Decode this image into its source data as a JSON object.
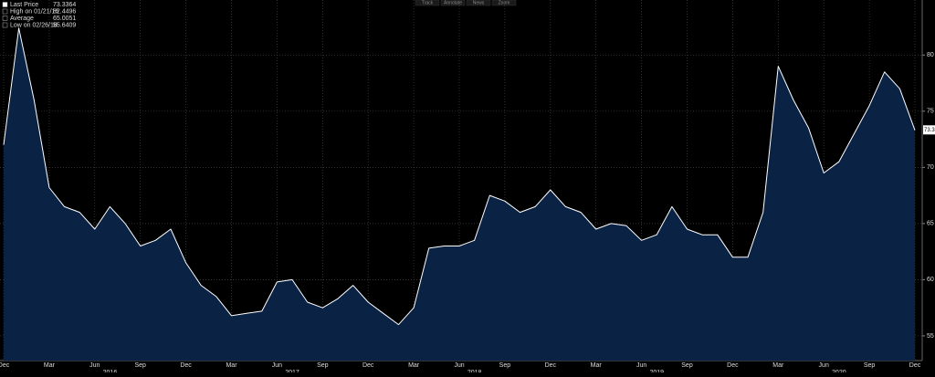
{
  "chart_data": {
    "type": "area",
    "toolbar": [
      "Track",
      "Annotate",
      "News",
      "Zoom"
    ],
    "legend": [
      {
        "label": "Last Price",
        "value": 73.3364
      },
      {
        "label": "High on 01/21/16",
        "value": 82.4496
      },
      {
        "label": "Average",
        "value": 65.0051
      },
      {
        "label": "Low on 02/26/18",
        "value": 55.6409
      }
    ],
    "x": [
      "2015-12",
      "2016-01",
      "2016-02",
      "2016-03",
      "2016-04",
      "2016-05",
      "2016-06",
      "2016-07",
      "2016-08",
      "2016-09",
      "2016-10",
      "2016-11",
      "2016-12",
      "2017-01",
      "2017-02",
      "2017-03",
      "2017-04",
      "2017-05",
      "2017-06",
      "2017-07",
      "2017-08",
      "2017-09",
      "2017-10",
      "2017-11",
      "2017-12",
      "2018-01",
      "2018-02",
      "2018-03",
      "2018-04",
      "2018-05",
      "2018-06",
      "2018-07",
      "2018-08",
      "2018-09",
      "2018-10",
      "2018-11",
      "2018-12",
      "2019-01",
      "2019-02",
      "2019-03",
      "2019-04",
      "2019-05",
      "2019-06",
      "2019-07",
      "2019-08",
      "2019-09",
      "2019-10",
      "2019-11",
      "2019-12",
      "2020-01",
      "2020-02",
      "2020-03",
      "2020-04",
      "2020-05",
      "2020-06",
      "2020-07",
      "2020-08",
      "2020-09",
      "2020-10",
      "2020-11",
      "2020-12"
    ],
    "series": [
      {
        "name": "Last Price",
        "color": "#ffffff",
        "fill": "#0a2345",
        "values": [
          72,
          82.4,
          76,
          68.2,
          66.5,
          66,
          64.5,
          66.5,
          65,
          63,
          63.5,
          64.5,
          61.5,
          59.5,
          58.5,
          56.8,
          57,
          57.2,
          59.8,
          60,
          58,
          57.5,
          58.3,
          59.5,
          58,
          57,
          56,
          57.5,
          62.8,
          63,
          63,
          63.5,
          67.5,
          67,
          66,
          66.5,
          68,
          66.5,
          66,
          64.5,
          65,
          64.8,
          63.5,
          64,
          66.5,
          64.5,
          64,
          64,
          62,
          62,
          66,
          79,
          76,
          73.5,
          69.5,
          70.5,
          73,
          75.5,
          78.5,
          77,
          73.3
        ]
      }
    ],
    "xlim": [
      "2015-12",
      "2020-12"
    ],
    "xticks": [
      {
        "value": "2015-12",
        "label": "Dec"
      },
      {
        "value": "2016-03",
        "label": "Mar"
      },
      {
        "value": "2016-06",
        "label": "Jun"
      },
      {
        "value": "2016-09",
        "label": "Sep"
      },
      {
        "value": "2016-12",
        "label": "Dec"
      },
      {
        "value": "2017-03",
        "label": "Mar"
      },
      {
        "value": "2017-06",
        "label": "Jun"
      },
      {
        "value": "2017-09",
        "label": "Sep"
      },
      {
        "value": "2017-12",
        "label": "Dec"
      },
      {
        "value": "2018-03",
        "label": "Mar"
      },
      {
        "value": "2018-06",
        "label": "Jun"
      },
      {
        "value": "2018-09",
        "label": "Sep"
      },
      {
        "value": "2018-12",
        "label": "Dec"
      },
      {
        "value": "2019-03",
        "label": "Mar"
      },
      {
        "value": "2019-06",
        "label": "Jun"
      },
      {
        "value": "2019-09",
        "label": "Sep"
      },
      {
        "value": "2019-12",
        "label": "Dec"
      },
      {
        "value": "2020-03",
        "label": "Mar"
      },
      {
        "value": "2020-06",
        "label": "Jun"
      },
      {
        "value": "2020-09",
        "label": "Sep"
      },
      {
        "value": "2020-12",
        "label": "Dec"
      }
    ],
    "year_labels": [
      2016,
      2017,
      2018,
      2019,
      2020
    ],
    "ylim": [
      52.8,
      84.9
    ],
    "yticks": [
      55,
      60,
      65,
      70,
      75,
      80
    ],
    "grid": true
  }
}
